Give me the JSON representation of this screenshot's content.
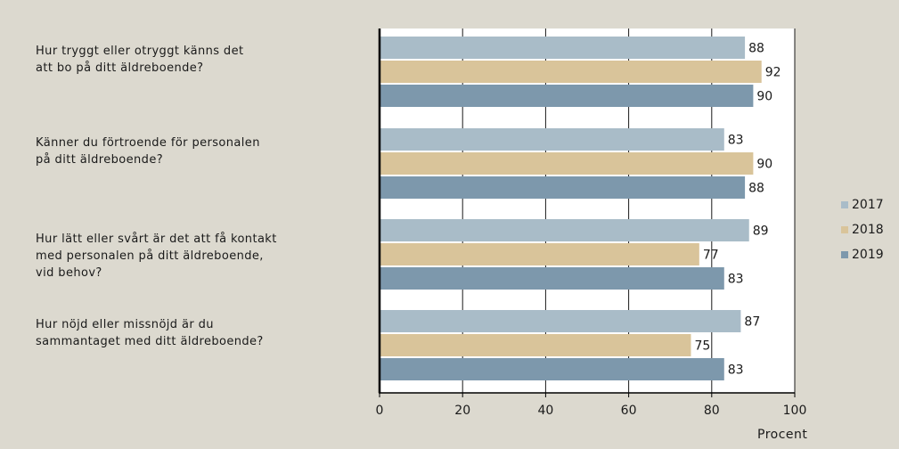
{
  "chart_data": {
    "type": "bar",
    "orientation": "horizontal",
    "categories": [
      [
        "Hur tryggt eller otryggt känns det",
        "att bo på ditt äldreboende?"
      ],
      [
        "Känner du förtroende för personalen",
        "på ditt äldreboende?"
      ],
      [
        "Hur lätt eller svårt är det att få kontakt",
        "med personalen på ditt äldreboende,",
        "vid behov?"
      ],
      [
        "Hur nöjd eller missnöjd är du",
        "sammantaget med ditt äldreboende?"
      ]
    ],
    "series": [
      {
        "name": "2017",
        "color": "#a9bcc8",
        "values": [
          88,
          83,
          89,
          87
        ]
      },
      {
        "name": "2018",
        "color": "#d9c49a",
        "values": [
          92,
          90,
          77,
          75
        ]
      },
      {
        "name": "2019",
        "color": "#7d98ac",
        "values": [
          90,
          88,
          83,
          83
        ]
      }
    ],
    "xlim": [
      0,
      100
    ],
    "xticks": [
      "0",
      "20",
      "40",
      "60",
      "80",
      "100"
    ],
    "xlabel": "Procent",
    "grid": "vertical",
    "legend_position": "right",
    "data_labels": true,
    "plot_background": "#ffffff",
    "page_background": "#dcd9cf"
  }
}
